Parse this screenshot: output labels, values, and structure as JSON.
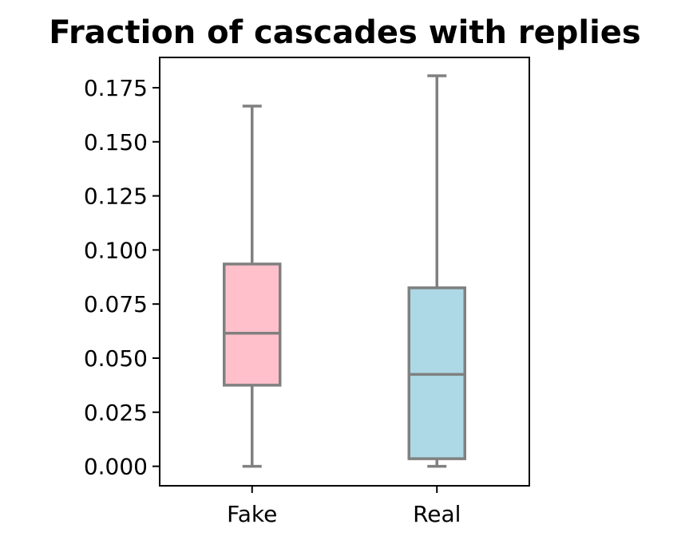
{
  "chart_data": {
    "type": "box",
    "title": "Fraction of cascades with replies",
    "xlabel": "",
    "ylabel": "",
    "categories": [
      "Fake",
      "Real"
    ],
    "boxes": [
      {
        "category": "Fake",
        "whisker_low": 0.0,
        "q1": 0.0375,
        "median": 0.0615,
        "q3": 0.0935,
        "whisker_high": 0.1665,
        "color": "#ffc0cb"
      },
      {
        "category": "Real",
        "whisker_low": 0.0,
        "q1": 0.0035,
        "median": 0.0425,
        "q3": 0.0825,
        "whisker_high": 0.1805,
        "color": "#add8e6"
      }
    ],
    "yticks": [
      "0.000",
      "0.025",
      "0.050",
      "0.075",
      "0.100",
      "0.125",
      "0.150",
      "0.175"
    ],
    "ylim": [
      -0.009,
      0.189
    ],
    "line_color": "#808080",
    "grid": false,
    "legend": "none"
  }
}
